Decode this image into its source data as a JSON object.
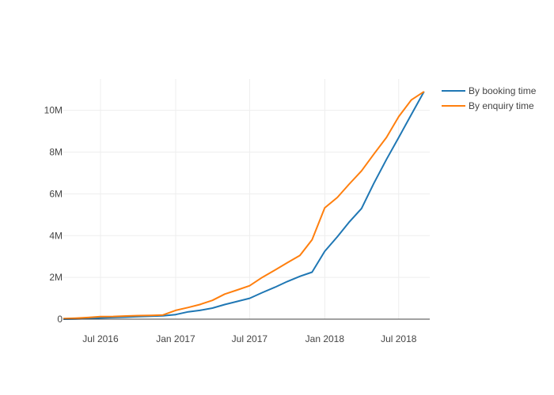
{
  "chart_data": {
    "type": "line",
    "title": "",
    "xlabel": "",
    "ylabel": "",
    "x_axis": {
      "type": "date",
      "range": [
        "2016-04-01",
        "2018-09-15"
      ],
      "ticks": [
        {
          "date": "2016-07-01",
          "label": "Jul 2016"
        },
        {
          "date": "2017-01-01",
          "label": "Jan 2017"
        },
        {
          "date": "2017-07-01",
          "label": "Jul 2017"
        },
        {
          "date": "2018-01-01",
          "label": "Jan 2018"
        },
        {
          "date": "2018-07-01",
          "label": "Jul 2018"
        }
      ]
    },
    "y_axis": {
      "range": [
        0,
        11500000
      ],
      "ticks": [
        {
          "value": 0,
          "label": "0"
        },
        {
          "value": 2000000,
          "label": "2M"
        },
        {
          "value": 4000000,
          "label": "4M"
        },
        {
          "value": 6000000,
          "label": "6M"
        },
        {
          "value": 8000000,
          "label": "8M"
        },
        {
          "value": 10000000,
          "label": "10M"
        }
      ]
    },
    "grid": true,
    "legend_position": "top-right",
    "series": [
      {
        "name": "By booking time",
        "color": "#1f77b4",
        "points": [
          [
            "2016-04-01",
            0
          ],
          [
            "2016-05-01",
            10000
          ],
          [
            "2016-06-01",
            30000
          ],
          [
            "2016-07-01",
            60000
          ],
          [
            "2016-08-01",
            80000
          ],
          [
            "2016-09-01",
            100000
          ],
          [
            "2016-10-01",
            120000
          ],
          [
            "2016-11-01",
            140000
          ],
          [
            "2016-12-01",
            160000
          ],
          [
            "2017-01-01",
            220000
          ],
          [
            "2017-02-01",
            350000
          ],
          [
            "2017-03-01",
            420000
          ],
          [
            "2017-04-01",
            530000
          ],
          [
            "2017-05-01",
            700000
          ],
          [
            "2017-06-01",
            850000
          ],
          [
            "2017-07-01",
            1000000
          ],
          [
            "2017-08-01",
            1270000
          ],
          [
            "2017-09-01",
            1530000
          ],
          [
            "2017-10-01",
            1800000
          ],
          [
            "2017-11-01",
            2050000
          ],
          [
            "2017-12-01",
            2250000
          ],
          [
            "2018-01-01",
            3250000
          ],
          [
            "2018-02-01",
            3950000
          ],
          [
            "2018-03-01",
            4630000
          ],
          [
            "2018-04-01",
            5300000
          ],
          [
            "2018-05-01",
            6500000
          ],
          [
            "2018-06-01",
            7650000
          ],
          [
            "2018-07-01",
            8700000
          ],
          [
            "2018-08-01",
            9800000
          ],
          [
            "2018-09-01",
            10900000
          ]
        ]
      },
      {
        "name": "By enquiry time",
        "color": "#ff7f0e",
        "points": [
          [
            "2016-04-01",
            30000
          ],
          [
            "2016-05-01",
            50000
          ],
          [
            "2016-06-01",
            80000
          ],
          [
            "2016-07-01",
            120000
          ],
          [
            "2016-08-01",
            130000
          ],
          [
            "2016-09-01",
            150000
          ],
          [
            "2016-10-01",
            170000
          ],
          [
            "2016-11-01",
            180000
          ],
          [
            "2016-12-01",
            200000
          ],
          [
            "2017-01-01",
            420000
          ],
          [
            "2017-02-01",
            560000
          ],
          [
            "2017-03-01",
            700000
          ],
          [
            "2017-04-01",
            900000
          ],
          [
            "2017-05-01",
            1200000
          ],
          [
            "2017-06-01",
            1400000
          ],
          [
            "2017-07-01",
            1600000
          ],
          [
            "2017-08-01",
            2000000
          ],
          [
            "2017-09-01",
            2350000
          ],
          [
            "2017-10-01",
            2700000
          ],
          [
            "2017-11-01",
            3050000
          ],
          [
            "2017-12-01",
            3800000
          ],
          [
            "2018-01-01",
            5330000
          ],
          [
            "2018-02-01",
            5830000
          ],
          [
            "2018-03-01",
            6450000
          ],
          [
            "2018-04-01",
            7100000
          ],
          [
            "2018-05-01",
            7900000
          ],
          [
            "2018-06-01",
            8700000
          ],
          [
            "2018-07-01",
            9700000
          ],
          [
            "2018-08-01",
            10500000
          ],
          [
            "2018-09-01",
            10900000
          ]
        ]
      }
    ]
  }
}
